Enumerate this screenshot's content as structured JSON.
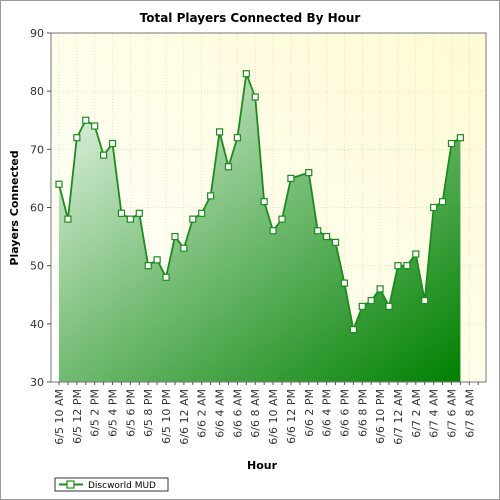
{
  "chart_data": {
    "type": "area",
    "title": "Total Players Connected By Hour",
    "xlabel": "Hour",
    "ylabel": "Players Connected",
    "ylim": [
      30,
      90
    ],
    "yticks": [
      30,
      40,
      50,
      60,
      70,
      80,
      90
    ],
    "x": [
      "6/5 10 AM",
      "6/5 11 AM",
      "6/5 12 PM",
      "6/5 1 PM",
      "6/5 2 PM",
      "6/5 3 PM",
      "6/5 4 PM",
      "6/5 5 PM",
      "6/5 6 PM",
      "6/5 7 PM",
      "6/5 8 PM",
      "6/5 9 PM",
      "6/5 10 PM",
      "6/5 11 PM",
      "6/6 12 AM",
      "6/6 1 AM",
      "6/6 2 AM",
      "6/6 3 AM",
      "6/6 4 AM",
      "6/6 5 AM",
      "6/6 6 AM",
      "6/6 7 AM",
      "6/6 8 AM",
      "6/6 9 AM",
      "6/6 10 AM",
      "6/6 11 AM",
      "6/6 12 PM",
      "6/6 1 PM",
      "6/6 2 PM",
      "6/6 3 PM",
      "6/6 4 PM",
      "6/6 5 PM",
      "6/6 6 PM",
      "6/6 7 PM",
      "6/6 8 PM",
      "6/6 9 PM",
      "6/6 10 PM",
      "6/6 11 PM",
      "6/7 12 AM",
      "6/7 1 AM",
      "6/7 2 AM",
      "6/7 3 AM",
      "6/7 4 AM",
      "6/7 5 AM",
      "6/7 6 AM",
      "6/7 7 AM",
      "6/7 8 AM",
      "6/7 9 AM"
    ],
    "xtick_labels": [
      "6/5 10 AM",
      "6/5 12 PM",
      "6/5 2 PM",
      "6/5 4 PM",
      "6/5 6 PM",
      "6/5 8 PM",
      "6/5 10 PM",
      "6/6 12 AM",
      "6/6 2 AM",
      "6/6 4 AM",
      "6/6 6 AM",
      "6/6 8 AM",
      "6/6 10 AM",
      "6/6 12 PM",
      "6/6 2 PM",
      "6/6 4 PM",
      "6/6 6 PM",
      "6/6 8 PM",
      "6/6 10 PM",
      "6/7 12 AM",
      "6/7 2 AM",
      "6/7 4 AM",
      "6/7 6 AM",
      "6/7 8 AM"
    ],
    "series": [
      {
        "name": "Discworld MUD",
        "values": [
          64,
          58,
          72,
          75,
          74,
          69,
          71,
          59,
          58,
          59,
          50,
          51,
          48,
          55,
          53,
          58,
          59,
          62,
          73,
          67,
          72,
          83,
          79,
          61,
          56,
          58,
          65,
          null,
          66,
          56,
          55,
          54,
          47,
          39,
          43,
          44,
          46,
          43,
          50,
          50,
          52,
          44,
          60,
          61,
          71,
          72,
          null,
          null
        ]
      }
    ],
    "grid": true,
    "legend_position": "bottom-left",
    "colors": {
      "line": "#1e8a1e",
      "fill_light": "#e6f4e6",
      "fill_dark": "#007a00",
      "plot_bg_light": "#fffbd4",
      "plot_bg_white": "#ffffff",
      "marker_fill": "#ffffff",
      "grid": "#d0d0b0"
    }
  }
}
